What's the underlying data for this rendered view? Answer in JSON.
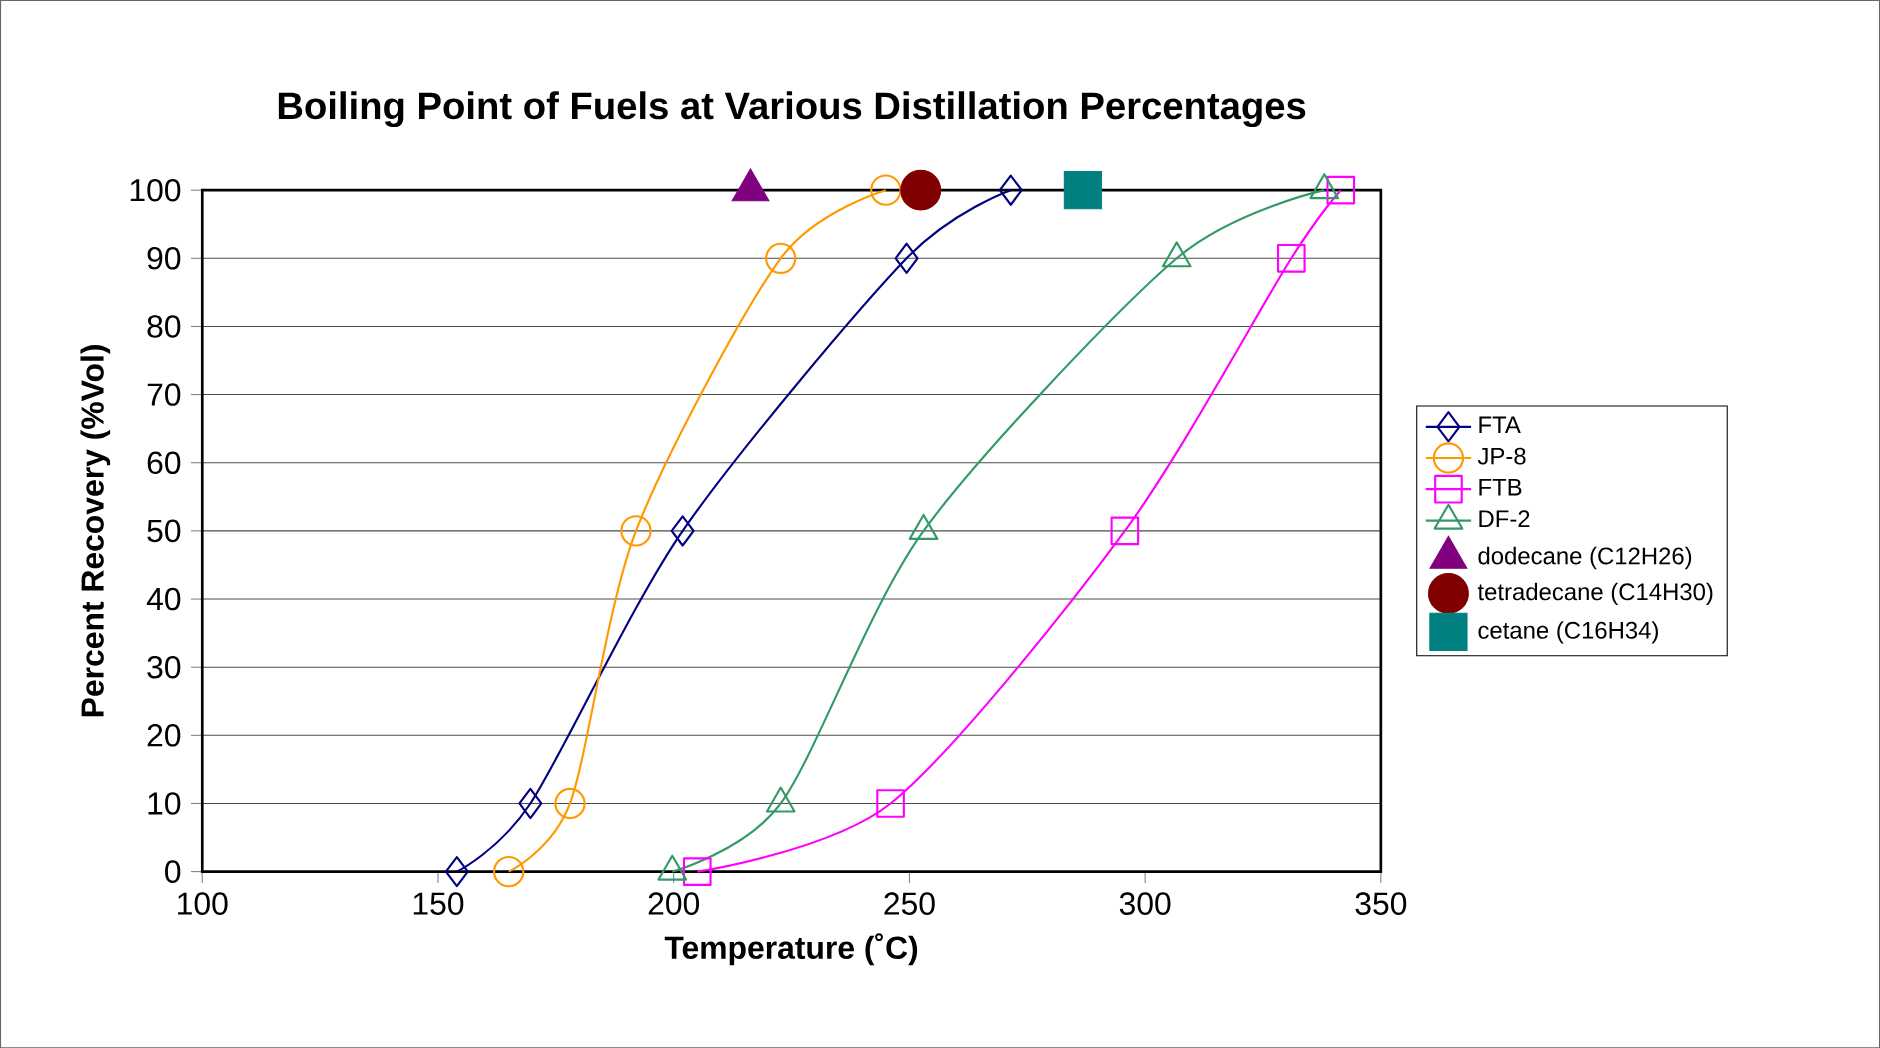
{
  "chart_data": {
    "type": "line",
    "title": "Boiling Point of Fuels at Various Distillation Percentages",
    "xlabel": "Temperature (˚C)",
    "ylabel": "Percent Recovery (%Vol)",
    "xlim": [
      100,
      350
    ],
    "ylim": [
      0,
      100
    ],
    "xticks": [
      100,
      150,
      200,
      250,
      300,
      350
    ],
    "yticks": [
      0,
      10,
      20,
      30,
      40,
      50,
      60,
      70,
      80,
      90,
      100
    ],
    "grid": "y",
    "legend": "right",
    "series": [
      {
        "name": "FTA",
        "color": "#000080",
        "marker": "diamond",
        "x": [
          154,
          169.6,
          201.9,
          249.4,
          271.5
        ],
        "values": [
          0,
          10,
          50,
          90,
          100
        ]
      },
      {
        "name": "JP-8",
        "color": "#ff9900",
        "marker": "circle",
        "x": [
          165,
          178,
          192,
          222.7,
          245
        ],
        "values": [
          0,
          10,
          50,
          90,
          100
        ]
      },
      {
        "name": "FTB",
        "color": "#ff00ff",
        "marker": "square",
        "x": [
          205,
          246,
          295.7,
          331,
          341.5
        ],
        "values": [
          0,
          10,
          50,
          90,
          100
        ]
      },
      {
        "name": "DF-2",
        "color": "#339966",
        "marker": "triangle",
        "x": [
          199.7,
          222.7,
          253,
          306.7,
          338
        ],
        "values": [
          0,
          10,
          50,
          90,
          100
        ]
      },
      {
        "name": "dodecane (C12H26)",
        "type": "scatter",
        "color": "#800080",
        "marker": "triangle",
        "x": [
          216.3
        ],
        "values": [
          100
        ]
      },
      {
        "name": "tetradecane (C14H30)",
        "type": "scatter",
        "color": "#800000",
        "marker": "circle",
        "x": [
          252.4
        ],
        "values": [
          100
        ]
      },
      {
        "name": "cetane (C16H34)",
        "type": "scatter",
        "color": "#008080",
        "marker": "square",
        "x": [
          286.8
        ],
        "values": [
          100
        ]
      }
    ]
  }
}
